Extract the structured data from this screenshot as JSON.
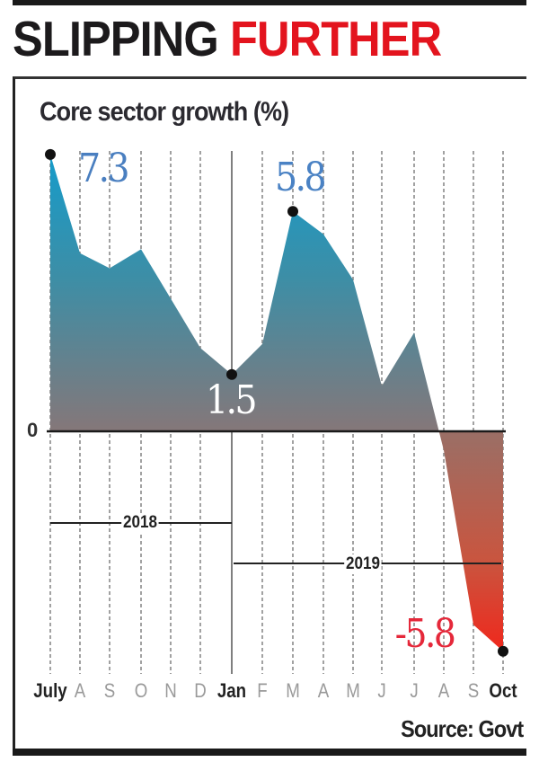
{
  "headline": {
    "part1": "SLIPPING",
    "part2": "FURTHER"
  },
  "subtitle": "Core sector growth (%)",
  "source": "Source: Govt",
  "colors": {
    "headline_dark": "#1c1a1c",
    "headline_red": "#e3141e",
    "area_top": "#1b9bc0",
    "area_mid": "#7a8289",
    "area_neg": "#e0301e",
    "label_blue": "#4a7fc0",
    "label_red": "#e5283a"
  },
  "axis": {
    "zero_label": "0"
  },
  "years": {
    "y2018": "2018",
    "y2019": "2019"
  },
  "value_labels": {
    "first": "7.3",
    "low": "1.5",
    "peak": "5.8",
    "last": "-5.8"
  },
  "x_labels": [
    {
      "label": "July",
      "style": "major"
    },
    {
      "label": "A",
      "style": "minor"
    },
    {
      "label": "S",
      "style": "minor"
    },
    {
      "label": "O",
      "style": "minor"
    },
    {
      "label": "N",
      "style": "minor"
    },
    {
      "label": "D",
      "style": "minor"
    },
    {
      "label": "Jan",
      "style": "major"
    },
    {
      "label": "F",
      "style": "minor"
    },
    {
      "label": "M",
      "style": "minor"
    },
    {
      "label": "A",
      "style": "minor"
    },
    {
      "label": "M",
      "style": "minor"
    },
    {
      "label": "J",
      "style": "minor"
    },
    {
      "label": "J",
      "style": "minor"
    },
    {
      "label": "A",
      "style": "minor"
    },
    {
      "label": "S",
      "style": "minor"
    },
    {
      "label": "Oct",
      "style": "major"
    }
  ],
  "chart_data": {
    "type": "area",
    "title": "SLIPPING FURTHER",
    "subtitle": "Core sector growth (%)",
    "xlabel": "",
    "ylabel": "Core sector growth (%)",
    "categories": [
      "Jul 2018",
      "Aug 2018",
      "Sep 2018",
      "Oct 2018",
      "Nov 2018",
      "Dec 2018",
      "Jan 2019",
      "Feb 2019",
      "Mar 2019",
      "Apr 2019",
      "May 2019",
      "Jun 2019",
      "Jul 2019",
      "Aug 2019",
      "Sep 2019",
      "Oct 2019"
    ],
    "tick_labels": [
      "July",
      "A",
      "S",
      "O",
      "N",
      "D",
      "Jan",
      "F",
      "M",
      "A",
      "M",
      "J",
      "J",
      "A",
      "S",
      "Oct"
    ],
    "series": [
      {
        "name": "Core sector growth (%)",
        "values": [
          7.3,
          4.7,
          4.3,
          4.8,
          3.5,
          2.2,
          1.5,
          2.3,
          5.8,
          5.2,
          4.0,
          1.2,
          2.6,
          -0.5,
          -5.1,
          -5.8
        ]
      }
    ],
    "annotations": [
      {
        "x": "Jul 2018",
        "text": "7.3"
      },
      {
        "x": "Jan 2019",
        "text": "1.5"
      },
      {
        "x": "Mar 2019",
        "text": "5.8"
      },
      {
        "x": "Oct 2019",
        "text": "-5.8"
      }
    ],
    "year_brackets": [
      {
        "label": "2018",
        "from": "Jul 2018",
        "to": "Jan 2019"
      },
      {
        "label": "2019",
        "from": "Jan 2019",
        "to": "Oct 2019"
      }
    ],
    "ylim": [
      -6.5,
      7.5
    ],
    "zero_line": true,
    "grid": "vertical dashed",
    "legend": "none",
    "source": "Source: Govt"
  }
}
